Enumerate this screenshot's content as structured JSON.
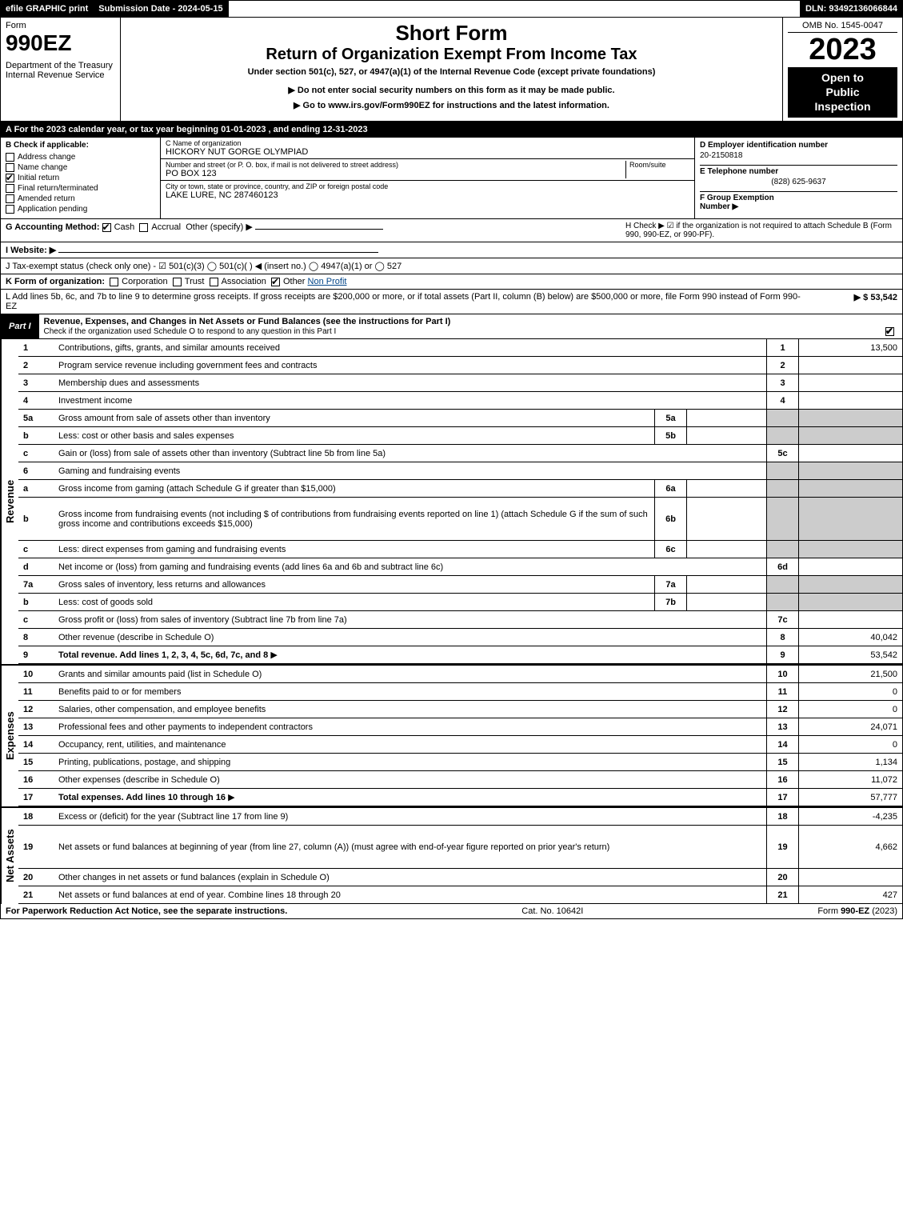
{
  "top": {
    "efile": "efile GRAPHIC print",
    "submission": "Submission Date - 2024-05-15",
    "dln": "DLN: 93492136066844"
  },
  "header": {
    "form_label": "Form",
    "form_number": "990EZ",
    "dept": "Department of the Treasury\nInternal Revenue Service",
    "short_form": "Short Form",
    "title": "Return of Organization Exempt From Income Tax",
    "under": "Under section 501(c), 527, or 4947(a)(1) of the Internal Revenue Code (except private foundations)",
    "warn": "▶ Do not enter social security numbers on this form as it may be made public.",
    "goto": "▶ Go to www.irs.gov/Form990EZ for instructions and the latest information.",
    "omb": "OMB No. 1545-0047",
    "year": "2023",
    "open_public": "Open to\nPublic\nInspection"
  },
  "section_a": "A  For the 2023 calendar year, or tax year beginning 01-01-2023 , and ending 12-31-2023",
  "section_b": {
    "label": "B  Check if applicable:",
    "items": [
      "Address change",
      "Name change",
      "Initial return",
      "Final return/terminated",
      "Amended return",
      "Application pending"
    ],
    "checked_idx": 2
  },
  "section_c": {
    "name_label": "C Name of organization",
    "name": "HICKORY NUT GORGE OLYMPIAD",
    "addr_label": "Number and street (or P. O. box, if mail is not delivered to street address)",
    "room_label": "Room/suite",
    "addr": "PO BOX 123",
    "city_label": "City or town, state or province, country, and ZIP or foreign postal code",
    "city": "LAKE LURE, NC  287460123"
  },
  "section_d": {
    "ein_label": "D Employer identification number",
    "ein": "20-2150818",
    "tel_label": "E Telephone number",
    "tel": "(828) 625-9637",
    "group_label": "F Group Exemption\nNumber   ▶"
  },
  "g_line": {
    "label": "G Accounting Method:",
    "cash": "Cash",
    "accrual": "Accrual",
    "other": "Other (specify) ▶"
  },
  "h_line": "H  Check ▶ ☑ if the organization is not required to attach Schedule B (Form 990, 990-EZ, or 990-PF).",
  "i_line": "I Website: ▶",
  "j_line": "J Tax-exempt status (check only one) - ☑ 501(c)(3)  ◯ 501(c)(  ) ◀ (insert no.)  ◯ 4947(a)(1) or  ◯ 527",
  "k_line": {
    "label": "K Form of organization:",
    "corp": "Corporation",
    "trust": "Trust",
    "assoc": "Association",
    "other": "Other",
    "other_val": "Non Profit"
  },
  "l_line": {
    "text": "L Add lines 5b, 6c, and 7b to line 9 to determine gross receipts. If gross receipts are $200,000 or more, or if total assets (Part II, column (B) below) are $500,000 or more, file Form 990 instead of Form 990-EZ",
    "val": "▶ $ 53,542"
  },
  "part1": {
    "label": "Part I",
    "title": "Revenue, Expenses, and Changes in Net Assets or Fund Balances (see the instructions for Part I)",
    "sub": "Check if the organization used Schedule O to respond to any question in this Part I"
  },
  "labels": {
    "revenue": "Revenue",
    "expenses": "Expenses",
    "netassets": "Net Assets"
  },
  "rows": [
    {
      "n": "1",
      "desc": "Contributions, gifts, grants, and similar amounts received",
      "rn": "1",
      "val": "13,500"
    },
    {
      "n": "2",
      "desc": "Program service revenue including government fees and contracts",
      "rn": "2",
      "val": ""
    },
    {
      "n": "3",
      "desc": "Membership dues and assessments",
      "rn": "3",
      "val": ""
    },
    {
      "n": "4",
      "desc": "Investment income",
      "rn": "4",
      "val": ""
    },
    {
      "n": "5a",
      "desc": "Gross amount from sale of assets other than inventory",
      "sub": "5a",
      "subval": "",
      "gray": true
    },
    {
      "n": "b",
      "desc": "Less: cost or other basis and sales expenses",
      "sub": "5b",
      "subval": "",
      "gray": true
    },
    {
      "n": "c",
      "desc": "Gain or (loss) from sale of assets other than inventory (Subtract line 5b from line 5a)",
      "rn": "5c",
      "val": ""
    },
    {
      "n": "6",
      "desc": "Gaming and fundraising events",
      "gray": true
    },
    {
      "n": "a",
      "desc": "Gross income from gaming (attach Schedule G if greater than $15,000)",
      "sub": "6a",
      "subval": "",
      "gray": true
    },
    {
      "n": "b",
      "desc": "Gross income from fundraising events (not including $               of contributions from fundraising events reported on line 1) (attach Schedule G if the sum of such gross income and contributions exceeds $15,000)",
      "sub": "6b",
      "subval": "",
      "gray": true,
      "tall": true
    },
    {
      "n": "c",
      "desc": "Less: direct expenses from gaming and fundraising events",
      "sub": "6c",
      "subval": "",
      "gray": true
    },
    {
      "n": "d",
      "desc": "Net income or (loss) from gaming and fundraising events (add lines 6a and 6b and subtract line 6c)",
      "rn": "6d",
      "val": ""
    },
    {
      "n": "7a",
      "desc": "Gross sales of inventory, less returns and allowances",
      "sub": "7a",
      "subval": "",
      "gray": true
    },
    {
      "n": "b",
      "desc": "Less: cost of goods sold",
      "sub": "7b",
      "subval": "",
      "gray": true
    },
    {
      "n": "c",
      "desc": "Gross profit or (loss) from sales of inventory (Subtract line 7b from line 7a)",
      "rn": "7c",
      "val": ""
    },
    {
      "n": "8",
      "desc": "Other revenue (describe in Schedule O)",
      "rn": "8",
      "val": "40,042"
    },
    {
      "n": "9",
      "desc": "Total revenue. Add lines 1, 2, 3, 4, 5c, 6d, 7c, and 8",
      "rn": "9",
      "val": "53,542",
      "bold": true,
      "arrow": true
    }
  ],
  "exp_rows": [
    {
      "n": "10",
      "desc": "Grants and similar amounts paid (list in Schedule O)",
      "rn": "10",
      "val": "21,500"
    },
    {
      "n": "11",
      "desc": "Benefits paid to or for members",
      "rn": "11",
      "val": "0"
    },
    {
      "n": "12",
      "desc": "Salaries, other compensation, and employee benefits",
      "rn": "12",
      "val": "0"
    },
    {
      "n": "13",
      "desc": "Professional fees and other payments to independent contractors",
      "rn": "13",
      "val": "24,071"
    },
    {
      "n": "14",
      "desc": "Occupancy, rent, utilities, and maintenance",
      "rn": "14",
      "val": "0"
    },
    {
      "n": "15",
      "desc": "Printing, publications, postage, and shipping",
      "rn": "15",
      "val": "1,134"
    },
    {
      "n": "16",
      "desc": "Other expenses (describe in Schedule O)",
      "rn": "16",
      "val": "11,072"
    },
    {
      "n": "17",
      "desc": "Total expenses. Add lines 10 through 16",
      "rn": "17",
      "val": "57,777",
      "bold": true,
      "arrow": true
    }
  ],
  "na_rows": [
    {
      "n": "18",
      "desc": "Excess or (deficit) for the year (Subtract line 17 from line 9)",
      "rn": "18",
      "val": "-4,235"
    },
    {
      "n": "19",
      "desc": "Net assets or fund balances at beginning of year (from line 27, column (A)) (must agree with end-of-year figure reported on prior year's return)",
      "rn": "19",
      "val": "4,662",
      "tall": true
    },
    {
      "n": "20",
      "desc": "Other changes in net assets or fund balances (explain in Schedule O)",
      "rn": "20",
      "val": ""
    },
    {
      "n": "21",
      "desc": "Net assets or fund balances at end of year. Combine lines 18 through 20",
      "rn": "21",
      "val": "427"
    }
  ],
  "footer": {
    "left": "For Paperwork Reduction Act Notice, see the separate instructions.",
    "mid": "Cat. No. 10642I",
    "right": "Form 990-EZ (2023)"
  }
}
